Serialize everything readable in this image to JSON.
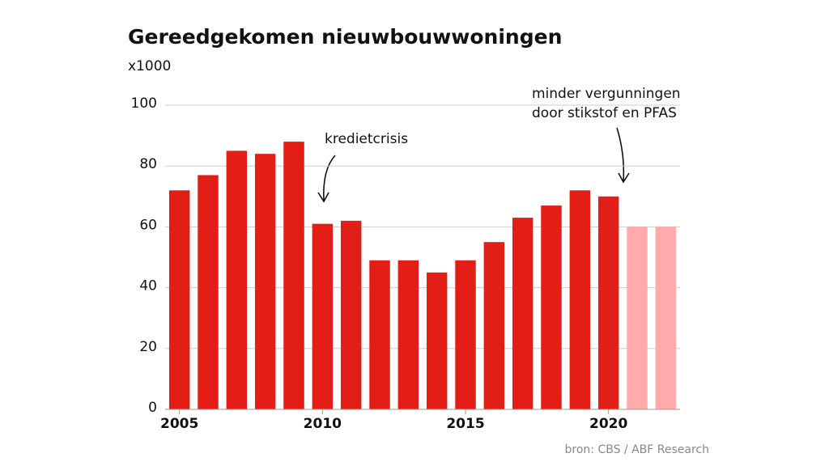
{
  "chart_data": {
    "type": "bar",
    "title": "Gereedgekomen nieuwbouwwoningen",
    "subtitle": "x1000",
    "x": [
      2005,
      2006,
      2007,
      2008,
      2009,
      2010,
      2011,
      2012,
      2013,
      2014,
      2015,
      2016,
      2017,
      2018,
      2019,
      2020,
      2021,
      2022
    ],
    "values": [
      72,
      77,
      85,
      84,
      88,
      61,
      62,
      49,
      49,
      45,
      49,
      55,
      63,
      67,
      72,
      70,
      60,
      60
    ],
    "colors": [
      "#e31e17",
      "#e31e17",
      "#e31e17",
      "#e31e17",
      "#e31e17",
      "#e31e17",
      "#e31e17",
      "#e31e17",
      "#e31e17",
      "#e31e17",
      "#e31e17",
      "#e31e17",
      "#e31e17",
      "#e31e17",
      "#e31e17",
      "#e31e17",
      "#ffabab",
      "#ffabab"
    ],
    "xlim": [
      2004.5,
      2022.5
    ],
    "xticks": [
      2005,
      2010,
      2015,
      2020
    ],
    "ylim": [
      0,
      100
    ],
    "yticks": [
      0,
      20,
      40,
      60,
      80,
      100
    ],
    "grid": true,
    "annotations": [
      "kredietcrisis",
      "minder vergunningen",
      "door stikstof en PFAS"
    ],
    "source": "bron: CBS / ABF Research"
  }
}
